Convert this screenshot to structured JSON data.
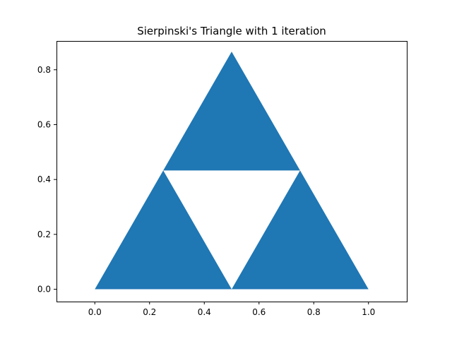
{
  "chart_data": {
    "type": "polygon",
    "title": "Sierpinski's Triangle with 1 iteration",
    "xlabel": "",
    "ylabel": "",
    "xlim": [
      -0.14,
      1.14
    ],
    "ylim": [
      -0.045,
      0.905
    ],
    "grid": false,
    "fill_color": "#1f77b4",
    "xticks": [
      0.0,
      0.2,
      0.4,
      0.6,
      0.8,
      1.0
    ],
    "xtick_labels": [
      "0.0",
      "0.2",
      "0.4",
      "0.6",
      "0.8",
      "1.0"
    ],
    "yticks": [
      0.0,
      0.2,
      0.4,
      0.6,
      0.8
    ],
    "ytick_labels": [
      "0.0",
      "0.2",
      "0.4",
      "0.6",
      "0.8"
    ],
    "triangles": [
      [
        [
          0.0,
          0.0
        ],
        [
          0.5,
          0.0
        ],
        [
          0.25,
          0.433
        ]
      ],
      [
        [
          0.5,
          0.0
        ],
        [
          1.0,
          0.0
        ],
        [
          0.75,
          0.433
        ]
      ],
      [
        [
          0.25,
          0.433
        ],
        [
          0.75,
          0.433
        ],
        [
          0.5,
          0.866
        ]
      ]
    ]
  }
}
